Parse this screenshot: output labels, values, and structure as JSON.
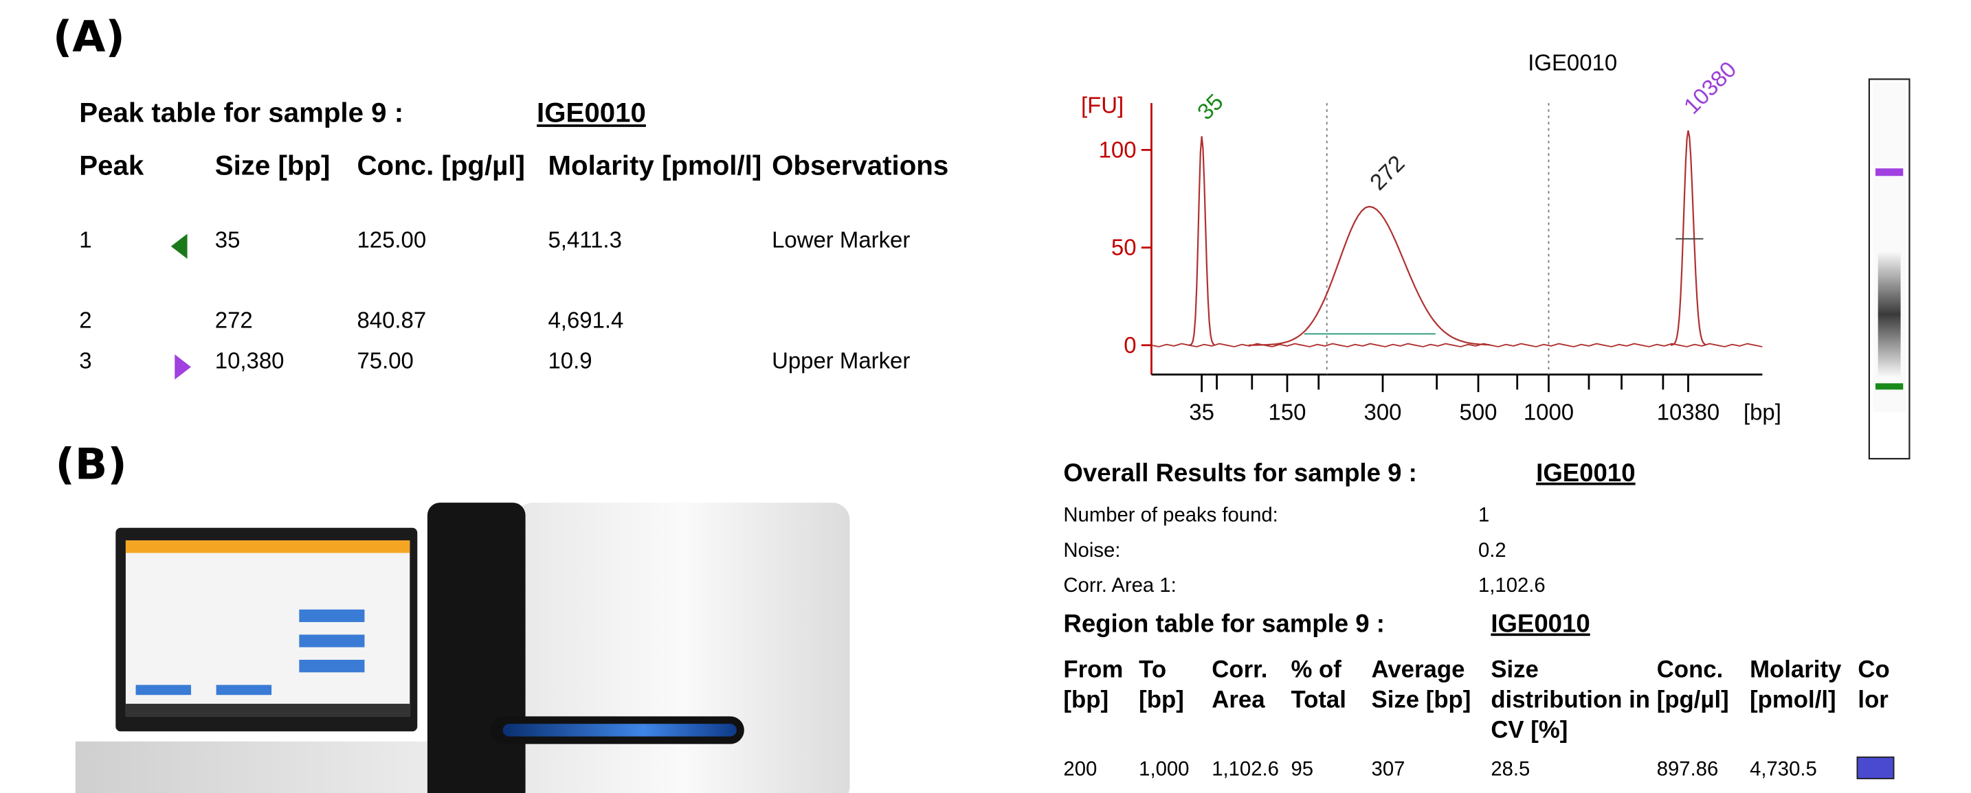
{
  "panel_a": {
    "label": "(A)",
    "peak_table": {
      "title": "Peak table for sample 9  :",
      "sample": "IGE0010",
      "headers": [
        "Peak",
        "Size [bp]",
        "Conc. [pg/µl]",
        "Molarity [pmol/l]",
        "Observations"
      ],
      "rows": [
        {
          "peak": "1",
          "size": "35",
          "conc": "125.00",
          "molarity": "5,411.3",
          "observation": "Lower Marker"
        },
        {
          "peak": "2",
          "size": "272",
          "conc": "840.87",
          "molarity": "4,691.4"
        },
        {
          "peak": "3",
          "size": "10,380",
          "conc": "75.00",
          "molarity": "10.9",
          "observation": "Upper Marker"
        }
      ]
    },
    "electropherogram": {
      "title": "IGE0010",
      "y_label": "[FU]",
      "x_label": "[bp]",
      "ylim": [
        -15,
        124
      ],
      "yticks": [
        0,
        50,
        100
      ],
      "xticks": [
        35,
        150,
        300,
        500,
        1000,
        10380
      ],
      "peaks": [
        {
          "label": "35",
          "size": 35,
          "height": 107,
          "color": "#1a8a1a"
        },
        {
          "label": "272",
          "size": 272,
          "height": 71,
          "color": "#222222"
        },
        {
          "label": "10380",
          "size": 10380,
          "height": 110,
          "color": "#9b3fd6"
        }
      ],
      "region": [
        200,
        1000
      ]
    },
    "overall_results": {
      "title": "Overall Results for sample 9  :",
      "sample": "IGE0010",
      "rows": [
        {
          "label": "Number of peaks found:",
          "value": "1"
        },
        {
          "label": "Noise:",
          "value": "0.2"
        },
        {
          "label": "Corr. Area 1:",
          "value": "1,102.6"
        }
      ]
    },
    "region_table": {
      "title": "Region table for sample 9  :",
      "sample": "IGE0010",
      "headers": [
        "From [bp]",
        "To [bp]",
        "Corr. Area",
        "% of Total",
        "Average Size [bp]",
        "Size distribution in CV [%]",
        "Conc. [pg/µl]",
        "Molarity [pmol/l]",
        "Color"
      ],
      "rows": [
        [
          "200",
          "1,000",
          "1,102.6",
          "95",
          "307",
          "28.5",
          "897.86",
          "4,730.5"
        ]
      ],
      "swatch_color": "#4a4ad0"
    }
  },
  "panel_b": {
    "label": "(B)"
  }
}
